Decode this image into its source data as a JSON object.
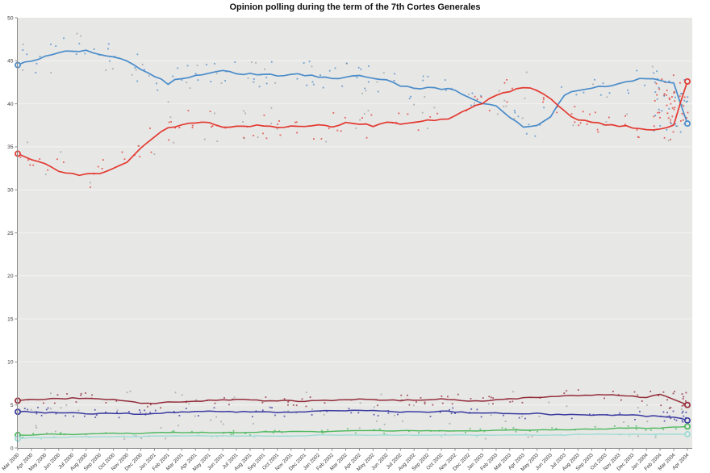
{
  "header": {
    "title": "Opinion polling during the term of the 7th Cortes Generales"
  },
  "chart_data": {
    "type": "line",
    "title": "Opinion polling during the term of the 7th Cortes Generales",
    "subtitle": "",
    "xlabel": "",
    "ylabel": "",
    "ylim": [
      0,
      50
    ],
    "y_ticks": [
      0,
      5,
      10,
      15,
      20,
      25,
      30,
      35,
      40,
      45,
      50
    ],
    "grid": "faint horizontal lines every 5 units",
    "legend_position": "none",
    "plot_bg": "#e7e7e6",
    "axis_color": "#8a8a8a",
    "tick_label_color": "#3a3a3a",
    "gridline_color": "rgba(255,255,255,0.5)",
    "markers_note": "open circle markers at first point (Mar 2000) and last point (Apr 2004) of every series; small scatter dots of individual polls around each trend line",
    "x_tick_labels": [
      "Mar 2000",
      "Apr 2000",
      "May 2000",
      "Jun 2000",
      "Jul 2000",
      "Aug 2000",
      "Sep 2000",
      "Oct 2000",
      "Nov 2000",
      "Dec 2000",
      "Jan 2001",
      "Feb 2001",
      "Mar 2001",
      "Apr 2001",
      "May 2001",
      "Jun 2001",
      "Jul 2001",
      "Aug 2001",
      "Sep 2001",
      "Oct 2001",
      "Nov 2001",
      "Dec 2001",
      "Jan 2002",
      "Feb 2002",
      "Mar 2002",
      "Apr 2002",
      "May 2002",
      "Jun 2002",
      "Jul 2002",
      "Aug 2002",
      "Sep 2002",
      "Oct 2002",
      "Nov 2002",
      "Dec 2002",
      "Jan 2003",
      "Feb 2003",
      "Mar 2003",
      "Apr 2003",
      "May 2003",
      "Jun 2003",
      "Jul 2003",
      "Aug 2003",
      "Sep 2003",
      "Oct 2003",
      "Nov 2003",
      "Dec 2003",
      "Jan 2004",
      "Feb 2004",
      "Mar 2004",
      "Apr 2004"
    ],
    "series": [
      {
        "name": "blue",
        "color": "#4a8cc9",
        "values": [
          44.5,
          45.0,
          45.6,
          46.0,
          46.2,
          46.2,
          45.8,
          45.4,
          44.9,
          44.0,
          43.2,
          42.4,
          43.0,
          43.2,
          43.5,
          43.8,
          43.6,
          43.5,
          43.4,
          43.2,
          43.5,
          43.4,
          43.2,
          43.0,
          43.1,
          43.4,
          42.9,
          42.7,
          42.1,
          41.9,
          41.8,
          41.8,
          41.5,
          40.8,
          40.0,
          39.8,
          38.3,
          37.4,
          37.6,
          38.6,
          40.9,
          41.6,
          41.9,
          42.0,
          42.3,
          42.7,
          43.0,
          42.8,
          42.4,
          37.7
        ]
      },
      {
        "name": "red",
        "color": "#e33a31",
        "values": [
          34.2,
          33.6,
          33.0,
          32.3,
          31.8,
          31.8,
          32.0,
          32.4,
          33.2,
          34.8,
          36.2,
          37.2,
          37.6,
          37.9,
          37.7,
          37.4,
          37.3,
          37.4,
          37.5,
          37.3,
          37.4,
          37.3,
          37.5,
          37.4,
          37.7,
          37.6,
          37.5,
          38.0,
          37.7,
          37.9,
          38.0,
          38.2,
          38.5,
          39.4,
          40.1,
          41.0,
          41.5,
          41.9,
          41.6,
          40.7,
          39.2,
          38.1,
          37.9,
          37.6,
          37.5,
          37.3,
          36.9,
          37.0,
          37.6,
          42.6
        ]
      },
      {
        "name": "dark-red",
        "color": "#942d3a",
        "values": [
          5.5,
          5.6,
          5.7,
          5.7,
          5.8,
          5.8,
          5.7,
          5.6,
          5.4,
          5.2,
          5.2,
          5.3,
          5.4,
          5.5,
          5.5,
          5.6,
          5.6,
          5.6,
          5.5,
          5.5,
          5.5,
          5.4,
          5.5,
          5.5,
          5.6,
          5.7,
          5.6,
          5.6,
          5.5,
          5.6,
          5.6,
          5.7,
          5.6,
          5.5,
          5.5,
          5.6,
          5.7,
          5.8,
          5.9,
          6.0,
          6.0,
          6.1,
          6.1,
          6.2,
          6.1,
          6.0,
          5.9,
          6.2,
          5.7,
          5.0
        ]
      },
      {
        "name": "dark-blue",
        "color": "#3a3aa0",
        "values": [
          4.2,
          4.2,
          4.1,
          4.1,
          4.1,
          4.0,
          4.0,
          4.0,
          4.0,
          3.9,
          4.0,
          4.1,
          4.2,
          4.2,
          4.3,
          4.2,
          4.2,
          4.2,
          4.2,
          4.1,
          4.2,
          4.2,
          4.3,
          4.3,
          4.3,
          4.4,
          4.3,
          4.3,
          4.2,
          4.2,
          4.2,
          4.3,
          4.2,
          4.1,
          4.1,
          4.1,
          4.0,
          4.0,
          4.0,
          3.9,
          3.9,
          3.9,
          3.8,
          3.8,
          3.9,
          3.8,
          3.7,
          3.7,
          3.6,
          3.2
        ]
      },
      {
        "name": "green",
        "color": "#4cb85c",
        "values": [
          1.5,
          1.5,
          1.6,
          1.6,
          1.6,
          1.6,
          1.7,
          1.7,
          1.7,
          1.7,
          1.8,
          1.8,
          1.8,
          1.8,
          1.8,
          1.8,
          1.8,
          1.8,
          1.9,
          1.9,
          1.9,
          1.9,
          1.9,
          1.9,
          2.0,
          2.0,
          2.0,
          2.0,
          2.0,
          2.0,
          2.0,
          2.0,
          2.0,
          2.0,
          2.0,
          2.1,
          2.1,
          2.1,
          2.1,
          2.1,
          2.1,
          2.2,
          2.2,
          2.2,
          2.3,
          2.3,
          2.3,
          2.3,
          2.4,
          2.5
        ]
      },
      {
        "name": "light-teal",
        "color": "#9adcd4",
        "values": [
          1.1,
          1.2,
          1.2,
          1.2,
          1.3,
          1.3,
          1.3,
          1.3,
          1.3,
          1.3,
          1.4,
          1.4,
          1.4,
          1.4,
          1.4,
          1.4,
          1.4,
          1.4,
          1.4,
          1.4,
          1.4,
          1.4,
          1.5,
          1.5,
          1.5,
          1.5,
          1.5,
          1.5,
          1.5,
          1.5,
          1.5,
          1.5,
          1.5,
          1.5,
          1.5,
          1.5,
          1.5,
          1.5,
          1.5,
          1.5,
          1.5,
          1.6,
          1.6,
          1.6,
          1.6,
          1.6,
          1.6,
          1.6,
          1.6,
          1.6
        ]
      }
    ],
    "scatter_gray_color": "#777777"
  }
}
